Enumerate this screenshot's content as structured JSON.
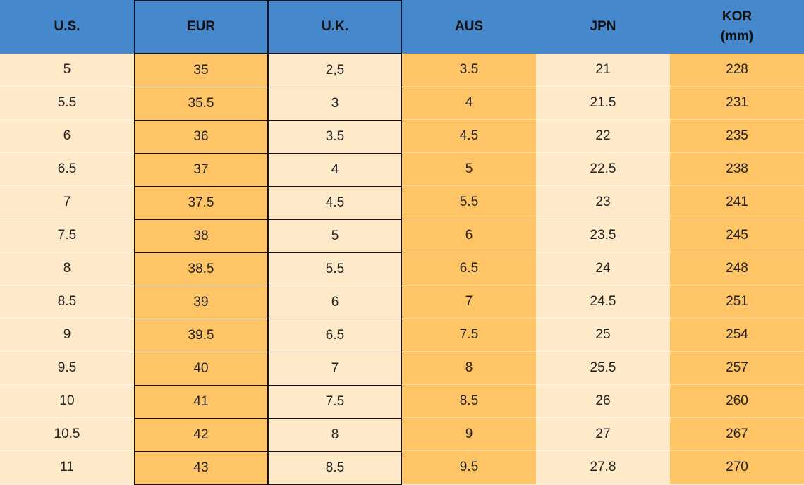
{
  "table": {
    "headers": [
      "U.S.",
      "EUR",
      "U.K.",
      "AUS",
      "JPN",
      "KOR\n(mm)"
    ],
    "rows": [
      [
        "5",
        "35",
        "2,5",
        "3.5",
        "21",
        "228"
      ],
      [
        "5.5",
        "35.5",
        "3",
        "4",
        "21.5",
        "231"
      ],
      [
        "6",
        "36",
        "3.5",
        "4.5",
        "22",
        "235"
      ],
      [
        "6.5",
        "37",
        "4",
        "5",
        "22.5",
        "238"
      ],
      [
        "7",
        "37.5",
        "4.5",
        "5.5",
        "23",
        "241"
      ],
      [
        "7.5",
        "38",
        "5",
        "6",
        "23.5",
        "245"
      ],
      [
        "8",
        "38.5",
        "5.5",
        "6.5",
        "24",
        "248"
      ],
      [
        "8.5",
        "39",
        "6",
        "7",
        "24.5",
        "251"
      ],
      [
        "9",
        "39.5",
        "6.5",
        "7.5",
        "25",
        "254"
      ],
      [
        "9.5",
        "40",
        "7",
        "8",
        "25.5",
        "257"
      ],
      [
        "10",
        "41",
        "7.5",
        "8.5",
        "26",
        "260"
      ],
      [
        "10.5",
        "42",
        "8",
        "9",
        "27",
        "267"
      ],
      [
        "11",
        "43",
        "8.5",
        "9.5",
        "27.8",
        "270"
      ]
    ]
  }
}
